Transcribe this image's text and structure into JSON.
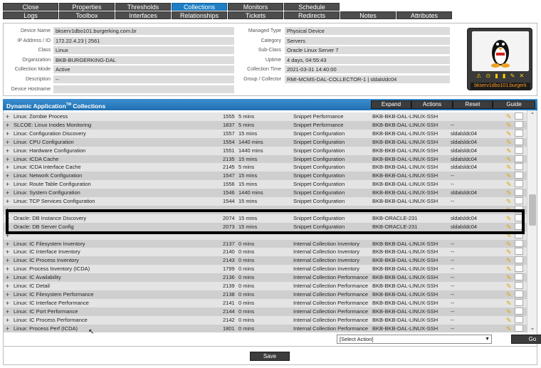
{
  "tabs": {
    "row1": [
      {
        "label": "Close",
        "active": false
      },
      {
        "label": "Properties",
        "active": false
      },
      {
        "label": "Thresholds",
        "active": false
      },
      {
        "label": "Collections",
        "active": true
      },
      {
        "label": "Monitors",
        "active": false
      },
      {
        "label": "Schedule",
        "active": false
      }
    ],
    "row2": [
      {
        "label": "Logs",
        "active": false
      },
      {
        "label": "Toolbox",
        "active": false
      },
      {
        "label": "Interfaces",
        "active": false
      },
      {
        "label": "Relationships",
        "active": false
      },
      {
        "label": "Tickets",
        "active": false
      },
      {
        "label": "Redirects",
        "active": false
      },
      {
        "label": "Notes",
        "active": false
      },
      {
        "label": "Attributes",
        "active": false
      }
    ]
  },
  "device": {
    "left": [
      {
        "label": "Device Name",
        "value": "bkserv1dbo101.burgerking.com.br"
      },
      {
        "label": "IP Address / ID",
        "value": "172.22.4.23 | 2561"
      },
      {
        "label": "Class",
        "value": "Linux"
      },
      {
        "label": "Organization",
        "value": "BKB-BURGERKING-DAL"
      },
      {
        "label": "Collection Mode",
        "value": "Active"
      },
      {
        "label": "Description",
        "value": "--"
      },
      {
        "label": "Device Hostname",
        "value": ""
      }
    ],
    "mid": [
      {
        "label": "Managed Type",
        "value": "Physical Device"
      },
      {
        "label": "Category",
        "value": "Servers"
      },
      {
        "label": "Sub-Class",
        "value": "Oracle Linux Server 7"
      },
      {
        "label": "Uptime",
        "value": "4 days, 04:55:43"
      },
      {
        "label": "Collection Time",
        "value": "2021-03-31 14:40:00"
      },
      {
        "label": "Group / Collector",
        "value": "RMI-MCMS-DAL-COLLECTOR-1 | sldalsldc04"
      }
    ],
    "card_name": "bkserv1dbo101.burgerk",
    "status_icons": "⚠ ⊙ ▮ ▮ ✎ ✕"
  },
  "collections": {
    "title": "Dynamic Application",
    "title_sup": "TM",
    "title_suffix": " Collections",
    "buttons": {
      "expand": "Expand",
      "actions": "Actions",
      "reset": "Reset",
      "guide": "Guide"
    },
    "rows": [
      {
        "name": "Linux: Zombie Process",
        "id": "1555",
        "poll": "5 mins",
        "type": "Snippet Performance",
        "cred": "BKB-BKB-DAL-LINUX-SSH",
        "coll": ""
      },
      {
        "name": "SLCOE: Linux Inodes Monitoring",
        "id": "1837",
        "poll": "5 mins",
        "type": "Snippet Performance",
        "cred": "BKB-BKB-DAL-LINUX-SSH",
        "coll": "--"
      },
      {
        "name": "Linux: Configuration Discovery",
        "id": "1557",
        "poll": "15 mins",
        "type": "Snippet Configuration",
        "cred": "BKB-BKB-DAL-LINUX-SSH",
        "coll": "sldalsldc04"
      },
      {
        "name": "Linux: CPU Configuration",
        "id": "1554",
        "poll": "1440 mins",
        "type": "Snippet Configuration",
        "cred": "BKB-BKB-DAL-LINUX-SSH",
        "coll": "sldalsldc04"
      },
      {
        "name": "Linux: Hardware Configuration",
        "id": "1551",
        "poll": "1440 mins",
        "type": "Snippet Configuration",
        "cred": "BKB-BKB-DAL-LINUX-SSH",
        "coll": "sldalsldc04"
      },
      {
        "name": "Linux: ICDA Cache",
        "id": "2135",
        "poll": "15 mins",
        "type": "Snippet Configuration",
        "cred": "BKB-BKB-DAL-LINUX-SSH",
        "coll": "sldalsldc04"
      },
      {
        "name": "Linux: ICDA Interface Cache",
        "id": "2145",
        "poll": "5 mins",
        "type": "Snippet Configuration",
        "cred": "BKB-BKB-DAL-LINUX-SSH",
        "coll": "sldalsldc04"
      },
      {
        "name": "Linux: Network Configuration",
        "id": "1547",
        "poll": "15 mins",
        "type": "Snippet Configuration",
        "cred": "BKB-BKB-DAL-LINUX-SSH",
        "coll": "--"
      },
      {
        "name": "Linux: Route Table Configuration",
        "id": "1556",
        "poll": "15 mins",
        "type": "Snippet Configuration",
        "cred": "BKB-BKB-DAL-LINUX-SSH",
        "coll": "--"
      },
      {
        "name": "Linux: System Configuration",
        "id": "1546",
        "poll": "1440 mins",
        "type": "Snippet Configuration",
        "cred": "BKB-BKB-DAL-LINUX-SSH",
        "coll": "sldalsldc04"
      },
      {
        "name": "Linux: TCP Services Configuration",
        "id": "1544",
        "poll": "15 mins",
        "type": "Snippet Configuration",
        "cred": "BKB-BKB-DAL-LINUX-SSH",
        "coll": "--"
      },
      {
        "name": "",
        "id": "",
        "poll": "",
        "type": "",
        "cred": "",
        "coll": ""
      },
      {
        "name": "Oracle: DB Instance Discovery",
        "id": "2074",
        "poll": "15 mins",
        "type": "Snippet Configuration",
        "cred": "BKB-ORACLE-231",
        "coll": "sldalsldc04"
      },
      {
        "name": "Oracle: DB Server Config",
        "id": "2073",
        "poll": "15 mins",
        "type": "Snippet Configuration",
        "cred": "BKB-ORACLE-231",
        "coll": "sldalsldc04"
      },
      {
        "name": "",
        "id": "",
        "poll": "",
        "type": "",
        "cred": "",
        "coll": ""
      },
      {
        "name": "Linux: IC Filesystem Inventory",
        "id": "2137",
        "poll": "0 mins",
        "type": "Internal Collection Inventory",
        "cred": "BKB-BKB-DAL-LINUX-SSH",
        "coll": "--"
      },
      {
        "name": "Linux: IC Interface Inventory",
        "id": "2140",
        "poll": "0 mins",
        "type": "Internal Collection Inventory",
        "cred": "BKB-BKB-DAL-LINUX-SSH",
        "coll": "--"
      },
      {
        "name": "Linux: IC Process Inventory",
        "id": "2143",
        "poll": "0 mins",
        "type": "Internal Collection Inventory",
        "cred": "BKB-BKB-DAL-LINUX-SSH",
        "coll": "--"
      },
      {
        "name": "Linux: Process Inventory (ICDA)",
        "id": "1799",
        "poll": "0 mins",
        "type": "Internal Collection Inventory",
        "cred": "BKB-BKB-DAL-LINUX-SSH",
        "coll": "--"
      },
      {
        "name": "Linux: IC Availability",
        "id": "2136",
        "poll": "0 mins",
        "type": "Internal Collection Performance",
        "cred": "BKB-BKB-DAL-LINUX-SSH",
        "coll": "--"
      },
      {
        "name": "Linux: IC Detail",
        "id": "2139",
        "poll": "0 mins",
        "type": "Internal Collection Performance",
        "cred": "BKB-BKB-DAL-LINUX-SSH",
        "coll": "--"
      },
      {
        "name": "Linux: IC Filesystem Performance",
        "id": "2138",
        "poll": "0 mins",
        "type": "Internal Collection Performance",
        "cred": "BKB-BKB-DAL-LINUX-SSH",
        "coll": "--"
      },
      {
        "name": "Linux: IC Interface Performance",
        "id": "2141",
        "poll": "0 mins",
        "type": "Internal Collection Performance",
        "cred": "BKB-BKB-DAL-LINUX-SSH",
        "coll": "--"
      },
      {
        "name": "Linux: IC Port Performance",
        "id": "2144",
        "poll": "0 mins",
        "type": "Internal Collection Performance",
        "cred": "BKB-BKB-DAL-LINUX-SSH",
        "coll": "--"
      },
      {
        "name": "Linux: IC Process Performance",
        "id": "2142",
        "poll": "0 mins",
        "type": "Internal Collection Performance",
        "cred": "BKB-BKB-DAL-LINUX-SSH",
        "coll": "--"
      },
      {
        "name": "Linux: Process Perf (ICDA)",
        "id": "1801",
        "poll": "0 mins",
        "type": "Internal Collection Performance",
        "cred": "BKB-BKB-DAL-LINUX-SSH",
        "coll": "--"
      }
    ]
  },
  "footer": {
    "select_action": "[Select Action]",
    "go_label": "Go",
    "save_label": "Save"
  },
  "colors": {
    "active_tab": "#1f7fc4",
    "tab": "#4d4d4d",
    "panel_header": "#1f6fb0",
    "highlight": "#000000"
  }
}
